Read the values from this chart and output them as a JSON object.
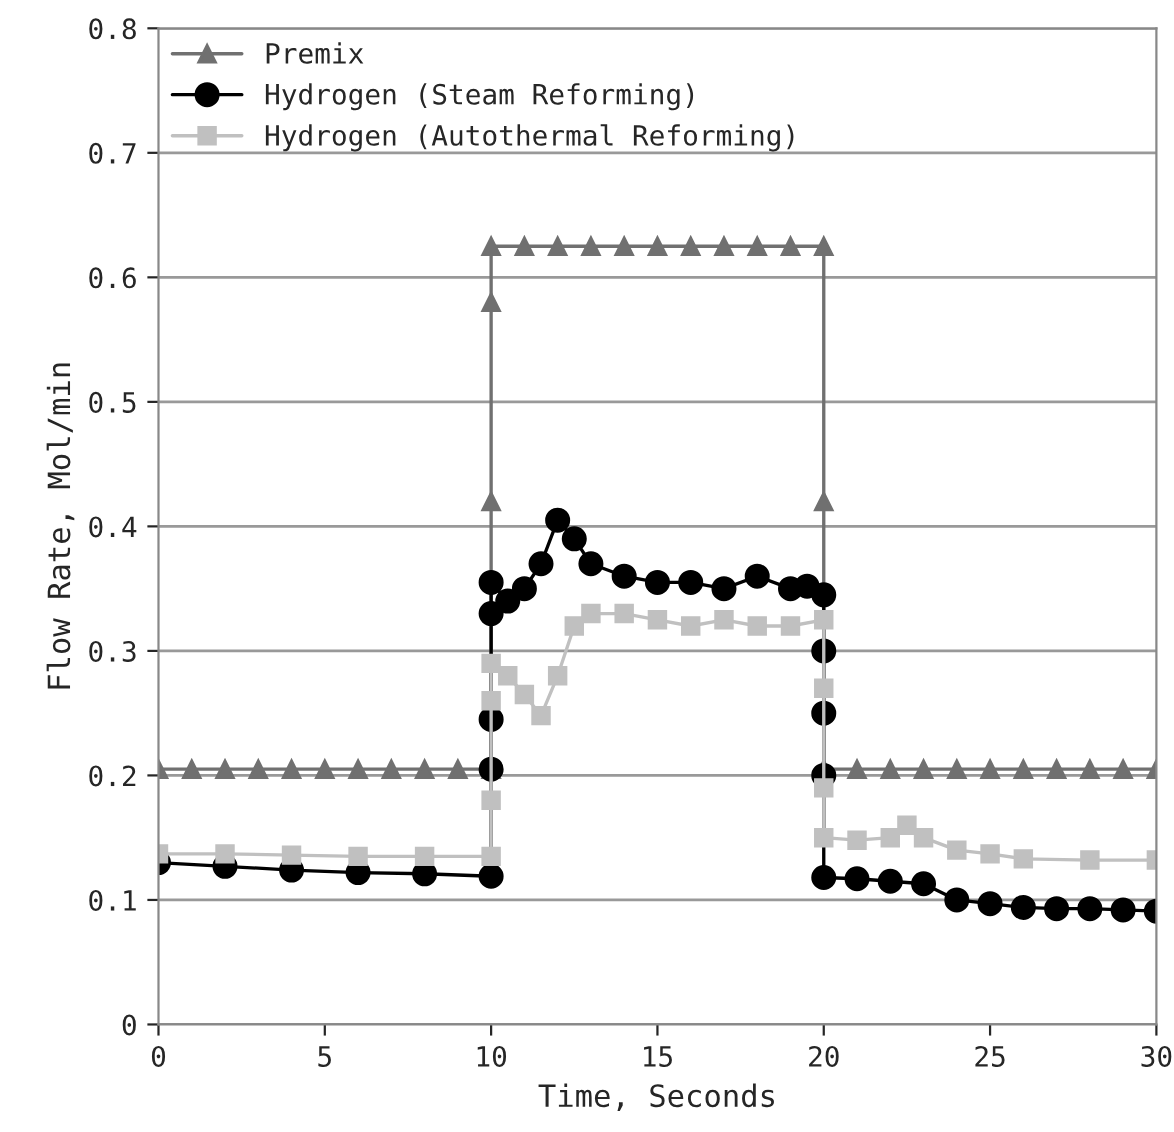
{
  "chart_data": {
    "type": "line",
    "xlabel": "Time, Seconds",
    "ylabel": "Flow Rate, Mol/min",
    "xlim": [
      0,
      30
    ],
    "xticks": [
      0,
      5,
      10,
      15,
      20,
      25,
      30
    ],
    "ylim": [
      0,
      0.8
    ],
    "yticks": [
      {
        "value": 0,
        "label": "0"
      },
      0.1,
      0.2,
      0.3,
      0.4,
      0.5,
      0.6,
      0.7,
      0.8
    ],
    "grid": "y",
    "legend": "top left",
    "series": [
      {
        "name": "Premix",
        "color": "#707070",
        "marker": "triangle",
        "x": [
          0,
          1,
          2,
          3,
          4,
          5,
          6,
          7,
          8,
          9,
          10,
          10,
          10,
          10,
          11,
          12,
          13,
          14,
          15,
          16,
          17,
          18,
          19,
          20,
          20,
          20,
          21,
          22,
          23,
          24,
          25,
          26,
          27,
          28,
          29,
          30
        ],
        "values": [
          0.205,
          0.205,
          0.205,
          0.205,
          0.205,
          0.205,
          0.205,
          0.205,
          0.205,
          0.205,
          0.205,
          0.42,
          0.58,
          0.625,
          0.625,
          0.625,
          0.625,
          0.625,
          0.625,
          0.625,
          0.625,
          0.625,
          0.625,
          0.625,
          0.42,
          0.205,
          0.205,
          0.205,
          0.205,
          0.205,
          0.205,
          0.205,
          0.205,
          0.205,
          0.205,
          0.205
        ]
      },
      {
        "name": "Hydrogen (Steam Reforming)",
        "color": "#000000",
        "marker": "circle",
        "x": [
          0,
          2,
          4,
          6,
          8,
          10,
          10,
          10,
          10,
          10,
          10.5,
          11,
          11.5,
          12,
          12.5,
          13,
          14,
          15,
          16,
          17,
          18,
          19,
          19.5,
          20,
          20,
          20,
          20,
          20,
          21,
          22,
          23,
          24,
          25,
          26,
          27,
          28,
          29,
          30
        ],
        "values": [
          0.13,
          0.127,
          0.124,
          0.122,
          0.121,
          0.119,
          0.205,
          0.245,
          0.33,
          0.355,
          0.34,
          0.35,
          0.37,
          0.405,
          0.39,
          0.37,
          0.36,
          0.355,
          0.355,
          0.35,
          0.36,
          0.35,
          0.352,
          0.345,
          0.3,
          0.25,
          0.2,
          0.118,
          0.117,
          0.115,
          0.113,
          0.1,
          0.097,
          0.094,
          0.093,
          0.093,
          0.092,
          0.091
        ]
      },
      {
        "name": "Hydrogen (Autothermal Reforming)",
        "color": "#c0c0c0",
        "marker": "square",
        "x": [
          0,
          2,
          4,
          6,
          8,
          10,
          10,
          10,
          10,
          10.5,
          11,
          11.5,
          12,
          12.5,
          13,
          14,
          15,
          16,
          17,
          18,
          19,
          20,
          20,
          20,
          20,
          21,
          22,
          22.5,
          23,
          24,
          25,
          26,
          28,
          30
        ],
        "values": [
          0.137,
          0.137,
          0.136,
          0.135,
          0.135,
          0.135,
          0.18,
          0.26,
          0.29,
          0.28,
          0.265,
          0.248,
          0.28,
          0.32,
          0.33,
          0.33,
          0.325,
          0.32,
          0.325,
          0.32,
          0.32,
          0.325,
          0.27,
          0.19,
          0.15,
          0.148,
          0.15,
          0.16,
          0.15,
          0.14,
          0.137,
          0.133,
          0.132,
          0.132
        ]
      }
    ]
  }
}
